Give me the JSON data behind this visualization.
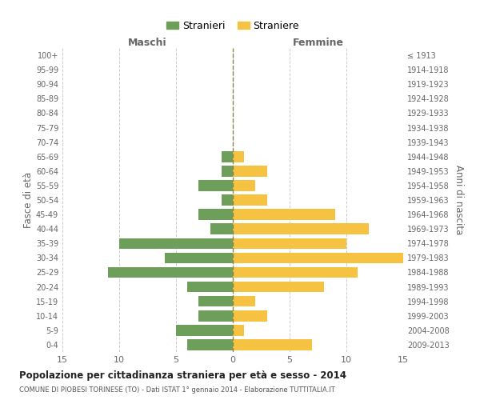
{
  "age_groups": [
    "0-4",
    "5-9",
    "10-14",
    "15-19",
    "20-24",
    "25-29",
    "30-34",
    "35-39",
    "40-44",
    "45-49",
    "50-54",
    "55-59",
    "60-64",
    "65-69",
    "70-74",
    "75-79",
    "80-84",
    "85-89",
    "90-94",
    "95-99",
    "100+"
  ],
  "birth_years": [
    "2009-2013",
    "2004-2008",
    "1999-2003",
    "1994-1998",
    "1989-1993",
    "1984-1988",
    "1979-1983",
    "1974-1978",
    "1969-1973",
    "1964-1968",
    "1959-1963",
    "1954-1958",
    "1949-1953",
    "1944-1948",
    "1939-1943",
    "1934-1938",
    "1929-1933",
    "1924-1928",
    "1919-1923",
    "1914-1918",
    "≤ 1913"
  ],
  "maschi": [
    4,
    5,
    3,
    3,
    4,
    11,
    6,
    10,
    2,
    3,
    1,
    3,
    1,
    1,
    0,
    0,
    0,
    0,
    0,
    0,
    0
  ],
  "femmine": [
    7,
    1,
    3,
    2,
    8,
    11,
    15,
    10,
    12,
    9,
    3,
    2,
    3,
    1,
    0,
    0,
    0,
    0,
    0,
    0,
    0
  ],
  "male_color": "#6d9e5a",
  "female_color": "#f5c242",
  "grid_color": "#cccccc",
  "center_line_color": "#888844",
  "title": "Popolazione per cittadinanza straniera per età e sesso - 2014",
  "subtitle": "COMUNE DI PIOBESI TORINESE (TO) - Dati ISTAT 1° gennaio 2014 - Elaborazione TUTTITALIA.IT",
  "xlabel_left": "Maschi",
  "xlabel_right": "Femmine",
  "ylabel_left": "Fasce di età",
  "ylabel_right": "Anni di nascita",
  "legend_maschi": "Stranieri",
  "legend_femmine": "Straniere",
  "xlim": 15,
  "background_color": "#ffffff",
  "bar_height": 0.75
}
